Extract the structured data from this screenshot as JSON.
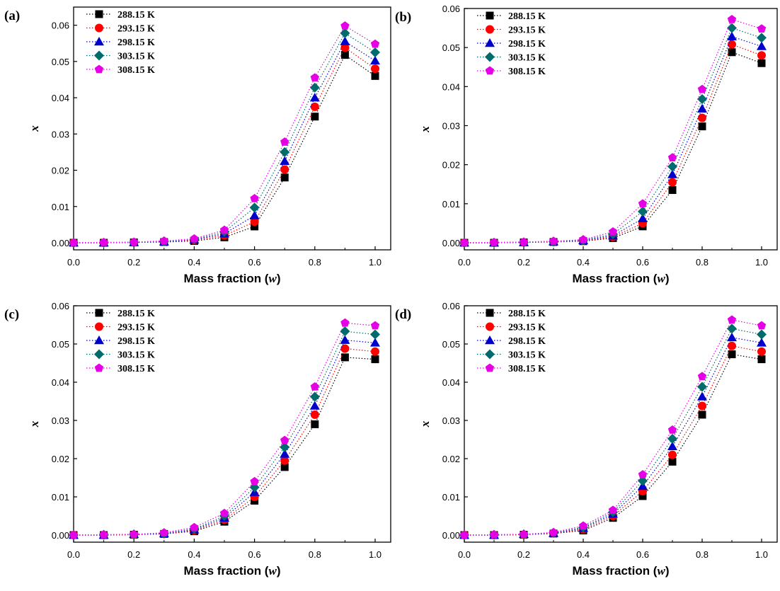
{
  "figure": {
    "panel_tags": [
      "(a)",
      "(b)",
      "(c)",
      "(d)"
    ]
  },
  "chart_data": [
    {
      "type": "line",
      "panel_tag": "(a)",
      "xlabel": "Mass fraction (",
      "xlabel_var": "w",
      "xlabel_end": ")",
      "ylabel": "x",
      "xlim": [
        0,
        1.0
      ],
      "ylim": [
        0,
        0.065
      ],
      "xticks": [
        "0.0",
        "0.2",
        "0.4",
        "0.6",
        "0.8",
        "1.0"
      ],
      "yticks": [
        "0.00",
        "0.01",
        "0.02",
        "0.03",
        "0.04",
        "0.05",
        "0.06"
      ],
      "ytick_values": [
        0,
        0.01,
        0.02,
        0.03,
        0.04,
        0.05,
        0.06
      ],
      "x": [
        0.0,
        0.1,
        0.2,
        0.3,
        0.4,
        0.5,
        0.6,
        0.7,
        0.8,
        0.9,
        1.0
      ],
      "legend": "top-left",
      "series": [
        {
          "name": "288.15 K",
          "color": "#000000",
          "marker": "square",
          "values": [
            0.0,
            0.0,
            0.0001,
            0.0002,
            0.0005,
            0.0015,
            0.0045,
            0.018,
            0.0348,
            0.0518,
            0.046
          ]
        },
        {
          "name": "293.15 K",
          "color": "#ff0000",
          "marker": "circle",
          "values": [
            0.0,
            0.0,
            0.0001,
            0.0003,
            0.0007,
            0.002,
            0.0058,
            0.0202,
            0.0375,
            0.0538,
            0.048
          ]
        },
        {
          "name": "298.15 K",
          "color": "#0000cc",
          "marker": "triangle",
          "values": [
            0.0,
            0.0,
            0.0001,
            0.0003,
            0.0008,
            0.0025,
            0.0075,
            0.0225,
            0.04,
            0.0555,
            0.0502
          ]
        },
        {
          "name": "303.15 K",
          "color": "#006b6b",
          "marker": "diamond",
          "values": [
            0.0,
            0.0,
            0.0001,
            0.0004,
            0.0009,
            0.003,
            0.0097,
            0.025,
            0.0428,
            0.0578,
            0.0525
          ]
        },
        {
          "name": "308.15 K",
          "color": "#e600e6",
          "marker": "pentagon",
          "values": [
            0.0,
            0.0001,
            0.0002,
            0.0005,
            0.0011,
            0.0035,
            0.0122,
            0.0278,
            0.0455,
            0.0598,
            0.0548
          ]
        }
      ]
    },
    {
      "type": "line",
      "panel_tag": "(b)",
      "xlabel": "Mass fraction (",
      "xlabel_var": "w",
      "xlabel_end": ")",
      "ylabel": "x",
      "xlim": [
        0,
        1.0
      ],
      "ylim": [
        0,
        0.06
      ],
      "xticks": [
        "0.0",
        "0.2",
        "0.4",
        "0.6",
        "0.8",
        "1.0"
      ],
      "yticks": [
        "0.00",
        "0.01",
        "0.02",
        "0.03",
        "0.04",
        "0.05",
        "0.06"
      ],
      "ytick_values": [
        0,
        0.01,
        0.02,
        0.03,
        0.04,
        0.05,
        0.06
      ],
      "x": [
        0.0,
        0.1,
        0.2,
        0.3,
        0.4,
        0.5,
        0.6,
        0.7,
        0.8,
        0.9,
        1.0
      ],
      "legend": "top-left",
      "series": [
        {
          "name": "288.15 K",
          "color": "#000000",
          "marker": "square",
          "values": [
            0.0,
            0.0,
            0.0001,
            0.0002,
            0.0004,
            0.0012,
            0.0042,
            0.0135,
            0.0298,
            0.0488,
            0.046
          ]
        },
        {
          "name": "293.15 K",
          "color": "#ff0000",
          "marker": "circle",
          "values": [
            0.0,
            0.0,
            0.0001,
            0.0002,
            0.0005,
            0.0015,
            0.005,
            0.0155,
            0.032,
            0.0508,
            0.048
          ]
        },
        {
          "name": "298.15 K",
          "color": "#0000cc",
          "marker": "triangle",
          "values": [
            0.0,
            0.0,
            0.0001,
            0.0003,
            0.0006,
            0.0018,
            0.0062,
            0.0175,
            0.0343,
            0.0528,
            0.0503
          ]
        },
        {
          "name": "303.15 K",
          "color": "#006b6b",
          "marker": "diamond",
          "values": [
            0.0,
            0.0,
            0.0001,
            0.0003,
            0.0007,
            0.0022,
            0.008,
            0.0195,
            0.0368,
            0.055,
            0.0525
          ]
        },
        {
          "name": "308.15 K",
          "color": "#e600e6",
          "marker": "pentagon",
          "values": [
            0.0,
            0.0001,
            0.0002,
            0.0004,
            0.0008,
            0.0028,
            0.01,
            0.0218,
            0.0393,
            0.0572,
            0.0548
          ]
        }
      ]
    },
    {
      "type": "line",
      "panel_tag": "(c)",
      "xlabel": "Mass fraction (",
      "xlabel_var": "w",
      "xlabel_end": ")",
      "ylabel": "x",
      "xlim": [
        0,
        1.0
      ],
      "ylim": [
        0,
        0.06
      ],
      "xticks": [
        "0.0",
        "0.2",
        "0.4",
        "0.6",
        "0.8",
        "1.0"
      ],
      "yticks": [
        "0.00",
        "0.01",
        "0.02",
        "0.03",
        "0.04",
        "0.05",
        "0.06"
      ],
      "ytick_values": [
        0,
        0.01,
        0.02,
        0.03,
        0.04,
        0.05,
        0.06
      ],
      "x": [
        0.0,
        0.1,
        0.2,
        0.3,
        0.4,
        0.5,
        0.6,
        0.7,
        0.8,
        0.9,
        1.0
      ],
      "legend": "top-left",
      "series": [
        {
          "name": "288.15 K",
          "color": "#000000",
          "marker": "square",
          "values": [
            0.0,
            0.0,
            0.0001,
            0.0003,
            0.001,
            0.0035,
            0.009,
            0.0178,
            0.029,
            0.0465,
            0.046
          ]
        },
        {
          "name": "293.15 K",
          "color": "#ff0000",
          "marker": "circle",
          "values": [
            0.0,
            0.0,
            0.0001,
            0.0003,
            0.0012,
            0.004,
            0.01,
            0.0195,
            0.0315,
            0.0488,
            0.048
          ]
        },
        {
          "name": "298.15 K",
          "color": "#0000cc",
          "marker": "triangle",
          "values": [
            0.0,
            0.0,
            0.0002,
            0.0004,
            0.0014,
            0.0045,
            0.0112,
            0.0212,
            0.0338,
            0.051,
            0.0503
          ]
        },
        {
          "name": "303.15 K",
          "color": "#006b6b",
          "marker": "diamond",
          "values": [
            0.0,
            0.0001,
            0.0002,
            0.0005,
            0.0016,
            0.005,
            0.0125,
            0.023,
            0.0362,
            0.0533,
            0.0525
          ]
        },
        {
          "name": "308.15 K",
          "color": "#e600e6",
          "marker": "pentagon",
          "values": [
            0.0,
            0.0001,
            0.0002,
            0.0006,
            0.002,
            0.0057,
            0.014,
            0.0248,
            0.0388,
            0.0555,
            0.0548
          ]
        }
      ]
    },
    {
      "type": "line",
      "panel_tag": "(d)",
      "xlabel": "Mass fraction (",
      "xlabel_var": "w",
      "xlabel_end": ")",
      "ylabel": "x",
      "xlim": [
        0,
        1.0
      ],
      "ylim": [
        0,
        0.06
      ],
      "xticks": [
        "0.0",
        "0.2",
        "0.4",
        "0.6",
        "0.8",
        "1.0"
      ],
      "yticks": [
        "0.00",
        "0.01",
        "0.02",
        "0.03",
        "0.04",
        "0.05",
        "0.06"
      ],
      "ytick_values": [
        0,
        0.01,
        0.02,
        0.03,
        0.04,
        0.05,
        0.06
      ],
      "x": [
        0.0,
        0.1,
        0.2,
        0.3,
        0.4,
        0.5,
        0.6,
        0.7,
        0.8,
        0.9,
        1.0
      ],
      "legend": "top-left",
      "series": [
        {
          "name": "288.15 K",
          "color": "#000000",
          "marker": "square",
          "values": [
            0.0,
            0.0,
            0.0001,
            0.0004,
            0.0012,
            0.0045,
            0.0102,
            0.0192,
            0.0315,
            0.0473,
            0.046
          ]
        },
        {
          "name": "293.15 K",
          "color": "#ff0000",
          "marker": "circle",
          "values": [
            0.0,
            0.0,
            0.0001,
            0.0005,
            0.0015,
            0.005,
            0.0115,
            0.021,
            0.0338,
            0.0495,
            0.048
          ]
        },
        {
          "name": "298.15 K",
          "color": "#0000cc",
          "marker": "triangle",
          "values": [
            0.0,
            0.0,
            0.0002,
            0.0005,
            0.0018,
            0.0055,
            0.0128,
            0.0232,
            0.0362,
            0.0517,
            0.0503
          ]
        },
        {
          "name": "303.15 K",
          "color": "#006b6b",
          "marker": "diamond",
          "values": [
            0.0,
            0.0001,
            0.0002,
            0.0006,
            0.002,
            0.006,
            0.0142,
            0.0252,
            0.0388,
            0.054,
            0.0525
          ]
        },
        {
          "name": "308.15 K",
          "color": "#e600e6",
          "marker": "pentagon",
          "values": [
            0.0,
            0.0001,
            0.0002,
            0.0007,
            0.0024,
            0.0065,
            0.0158,
            0.0275,
            0.0415,
            0.0563,
            0.0548
          ]
        }
      ]
    }
  ]
}
